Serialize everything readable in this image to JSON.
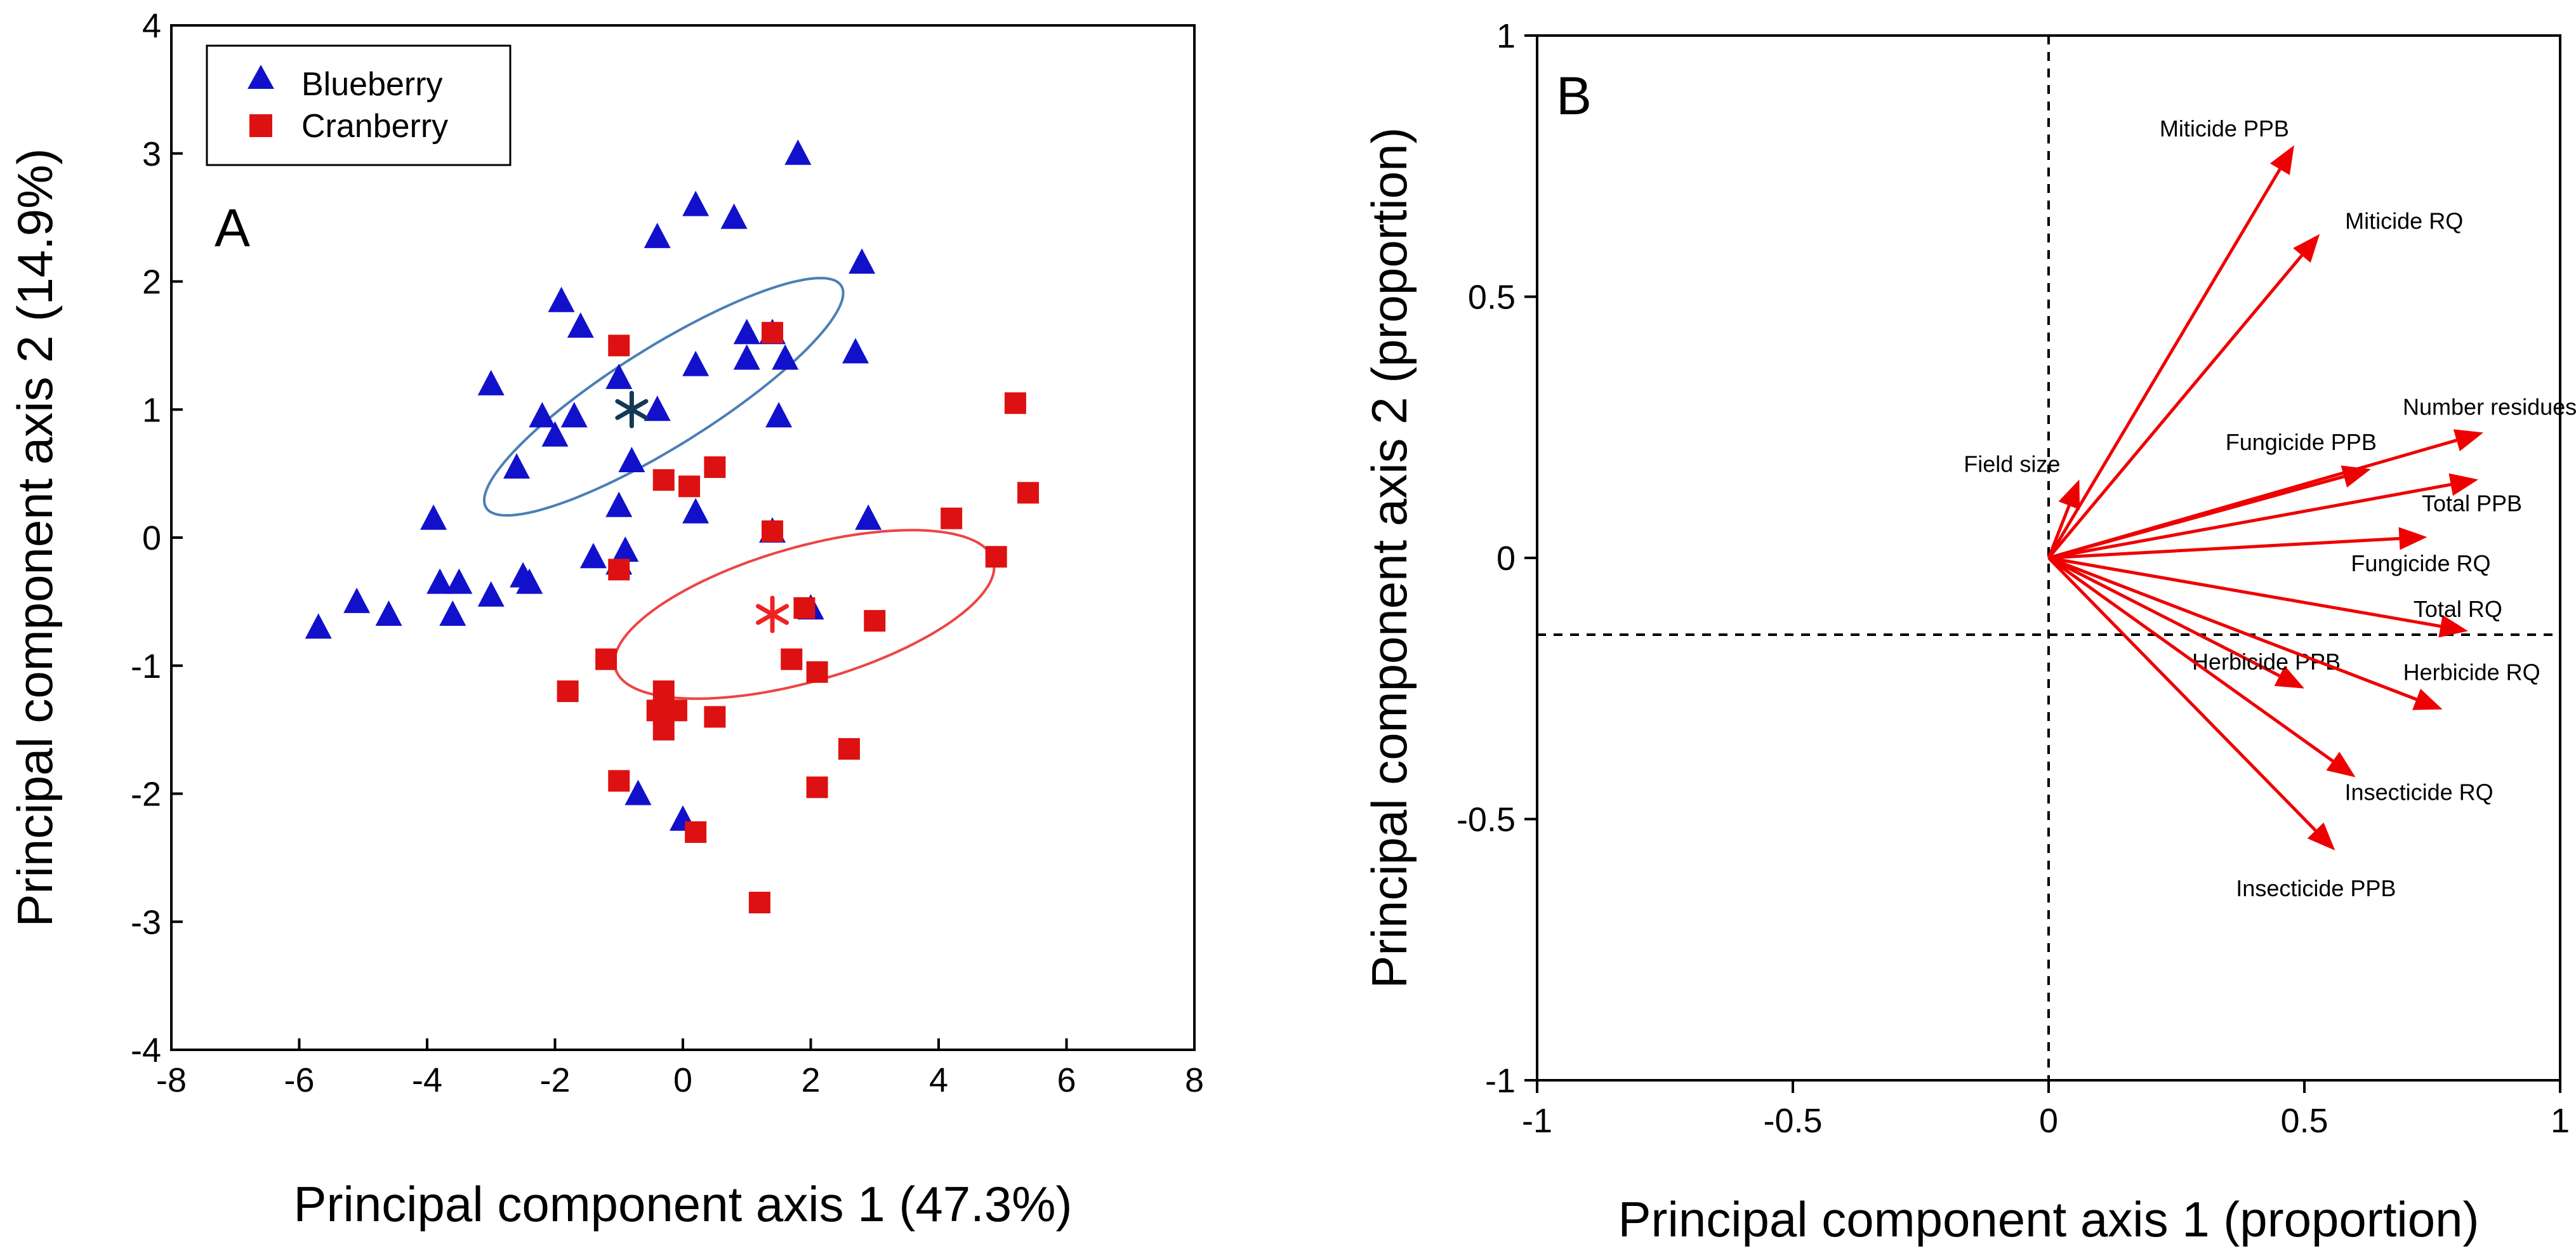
{
  "colors": {
    "blueberry": "#1111cc",
    "cranberry": "#dd1111",
    "ellipse_blueberry": "#4a7fb5",
    "ellipse_cranberry": "#ee4444",
    "arrow": "#ee0000",
    "centroid_blueberry": "#123a55",
    "centroid_cranberry": "#ee2222"
  },
  "chart_data": [
    {
      "panel": "A",
      "type": "scatter",
      "title": "",
      "xlabel": "Principal component axis 1 (47.3%)",
      "ylabel": "Principal component axis 2 (14.9%)",
      "xlim": [
        -8,
        8
      ],
      "ylim": [
        -4,
        4
      ],
      "xticks": [
        -8,
        -6,
        -4,
        -2,
        0,
        2,
        4,
        6,
        8
      ],
      "yticks": [
        -4,
        -3,
        -2,
        -1,
        0,
        1,
        2,
        3,
        4
      ],
      "legend": {
        "position": "top-left",
        "entries": [
          "Blueberry",
          "Cranberry"
        ]
      },
      "series": [
        {
          "name": "Blueberry",
          "marker": "triangle",
          "points": [
            [
              1.8,
              3.0
            ],
            [
              0.8,
              2.5
            ],
            [
              0.2,
              2.6
            ],
            [
              -0.4,
              2.35
            ],
            [
              2.8,
              2.15
            ],
            [
              -1.9,
              1.85
            ],
            [
              -1.6,
              1.65
            ],
            [
              1.4,
              1.6
            ],
            [
              1.0,
              1.6
            ],
            [
              1.6,
              1.4
            ],
            [
              1.0,
              1.4
            ],
            [
              2.7,
              1.45
            ],
            [
              0.2,
              1.35
            ],
            [
              -3.0,
              1.2
            ],
            [
              -1.0,
              1.25
            ],
            [
              -2.2,
              0.95
            ],
            [
              -1.7,
              0.95
            ],
            [
              -0.4,
              1.0
            ],
            [
              1.5,
              0.95
            ],
            [
              -2.0,
              0.8
            ],
            [
              -0.8,
              0.6
            ],
            [
              -2.6,
              0.55
            ],
            [
              -1.0,
              0.25
            ],
            [
              0.2,
              0.2
            ],
            [
              2.9,
              0.15
            ],
            [
              -3.9,
              0.15
            ],
            [
              1.4,
              0.05
            ],
            [
              -1.4,
              -0.15
            ],
            [
              -0.9,
              -0.1
            ],
            [
              -1.0,
              -0.2
            ],
            [
              -3.8,
              -0.35
            ],
            [
              -3.5,
              -0.35
            ],
            [
              -2.5,
              -0.3
            ],
            [
              -2.4,
              -0.35
            ],
            [
              -3.0,
              -0.45
            ],
            [
              -5.1,
              -0.5
            ],
            [
              -4.6,
              -0.6
            ],
            [
              -3.6,
              -0.6
            ],
            [
              -5.7,
              -0.7
            ],
            [
              2.0,
              -0.55
            ],
            [
              -0.7,
              -2.0
            ],
            [
              0.0,
              -2.2
            ]
          ]
        },
        {
          "name": "Cranberry",
          "marker": "square",
          "points": [
            [
              1.4,
              1.6
            ],
            [
              -1.0,
              1.5
            ],
            [
              5.2,
              1.05
            ],
            [
              0.5,
              0.55
            ],
            [
              -0.3,
              0.45
            ],
            [
              0.1,
              0.4
            ],
            [
              5.4,
              0.35
            ],
            [
              4.2,
              0.15
            ],
            [
              1.4,
              0.05
            ],
            [
              4.9,
              -0.15
            ],
            [
              -1.0,
              -0.25
            ],
            [
              1.9,
              -0.55
            ],
            [
              3.0,
              -0.65
            ],
            [
              -1.2,
              -0.95
            ],
            [
              1.7,
              -0.95
            ],
            [
              2.1,
              -1.05
            ],
            [
              -1.8,
              -1.2
            ],
            [
              -0.3,
              -1.2
            ],
            [
              -0.4,
              -1.35
            ],
            [
              0.5,
              -1.4
            ],
            [
              -0.1,
              -1.35
            ],
            [
              -0.3,
              -1.5
            ],
            [
              2.6,
              -1.65
            ],
            [
              -1.0,
              -1.9
            ],
            [
              2.1,
              -1.95
            ],
            [
              0.2,
              -2.3
            ],
            [
              1.2,
              -2.85
            ]
          ]
        }
      ],
      "centroids": [
        {
          "name": "Blueberry centroid",
          "x": -0.8,
          "y": 1.0
        },
        {
          "name": "Cranberry centroid",
          "x": 1.4,
          "y": -0.6
        }
      ],
      "ellipses": [
        {
          "name": "Blueberry",
          "cx": -0.3,
          "cy": 1.1,
          "rx": 6.55,
          "ry": 1.55,
          "angle_deg": 32
        },
        {
          "name": "Cranberry",
          "cx": 1.9,
          "cy": -0.6,
          "rx": 6.15,
          "ry": 2.1,
          "angle_deg": 16
        }
      ]
    },
    {
      "panel": "B",
      "type": "biplot",
      "title": "",
      "xlabel": "Principal component axis 1 (proportion)",
      "ylabel": "Principal component axis 2 (proportion)",
      "xlim": [
        -1,
        1
      ],
      "ylim": [
        -1,
        1
      ],
      "xticks": [
        -1,
        -0.5,
        0,
        0.5,
        1
      ],
      "yticks": [
        -1,
        -0.5,
        0,
        0.5,
        1
      ],
      "xtick_labels": [
        "-1",
        "-0.5",
        "0",
        "0.5",
        "1"
      ],
      "ytick_labels": [
        "-1",
        "-0.5",
        "0",
        "0.5",
        "1"
      ],
      "vectors": [
        {
          "label": "Miticide PPB",
          "x": 0.48,
          "y": 0.79
        },
        {
          "label": "Miticide RQ",
          "x": 0.53,
          "y": 0.62
        },
        {
          "label": "Number residues",
          "x": 0.85,
          "y": 0.24
        },
        {
          "label": "Fungicide PPB",
          "x": 0.63,
          "y": 0.17
        },
        {
          "label": "Total PPB",
          "x": 0.84,
          "y": 0.15
        },
        {
          "label": "Field size",
          "x": 0.06,
          "y": 0.15
        },
        {
          "label": "Fungicide RQ",
          "x": 0.74,
          "y": 0.04
        },
        {
          "label": "Total RQ",
          "x": 0.82,
          "y": -0.14
        },
        {
          "label": "Herbicide PPB",
          "x": 0.5,
          "y": -0.25
        },
        {
          "label": "Herbicide RQ",
          "x": 0.77,
          "y": -0.29
        },
        {
          "label": "Insecticide RQ",
          "x": 0.6,
          "y": -0.42
        },
        {
          "label": "Insecticide PPB",
          "x": 0.56,
          "y": -0.56
        }
      ]
    }
  ]
}
